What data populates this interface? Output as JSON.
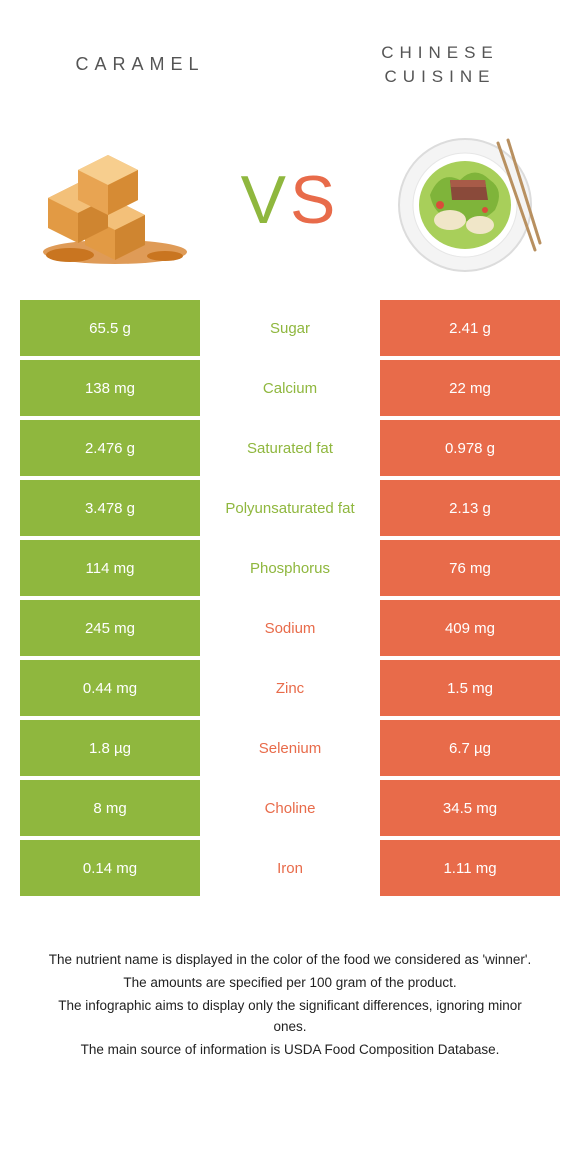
{
  "colors": {
    "green": "#8fb73e",
    "orange": "#e86b4a",
    "text_gray": "#555555",
    "footnote": "#222222",
    "white": "#ffffff"
  },
  "header": {
    "left_title": "Caramel",
    "right_title": "Chinese cuisine"
  },
  "vs": {
    "v": "V",
    "s": "S"
  },
  "rows": [
    {
      "left": "65.5 g",
      "label": "Sugar",
      "right": "2.41 g",
      "winner": "left"
    },
    {
      "left": "138 mg",
      "label": "Calcium",
      "right": "22 mg",
      "winner": "left"
    },
    {
      "left": "2.476 g",
      "label": "Saturated fat",
      "right": "0.978 g",
      "winner": "left"
    },
    {
      "left": "3.478 g",
      "label": "Polyunsaturated fat",
      "right": "2.13 g",
      "winner": "left"
    },
    {
      "left": "114 mg",
      "label": "Phosphorus",
      "right": "76 mg",
      "winner": "left"
    },
    {
      "left": "245 mg",
      "label": "Sodium",
      "right": "409 mg",
      "winner": "right"
    },
    {
      "left": "0.44 mg",
      "label": "Zinc",
      "right": "1.5 mg",
      "winner": "right"
    },
    {
      "left": "1.8 µg",
      "label": "Selenium",
      "right": "6.7 µg",
      "winner": "right"
    },
    {
      "left": "8 mg",
      "label": "Choline",
      "right": "34.5 mg",
      "winner": "right"
    },
    {
      "left": "0.14 mg",
      "label": "Iron",
      "right": "1.11 mg",
      "winner": "right"
    }
  ],
  "footnotes": [
    "The nutrient name is displayed in the color of the food we considered as 'winner'.",
    "The amounts are specified per 100 gram of the product.",
    "The infographic aims to display only the significant differences, ignoring minor ones.",
    "The main source of information is USDA Food Composition Database."
  ]
}
